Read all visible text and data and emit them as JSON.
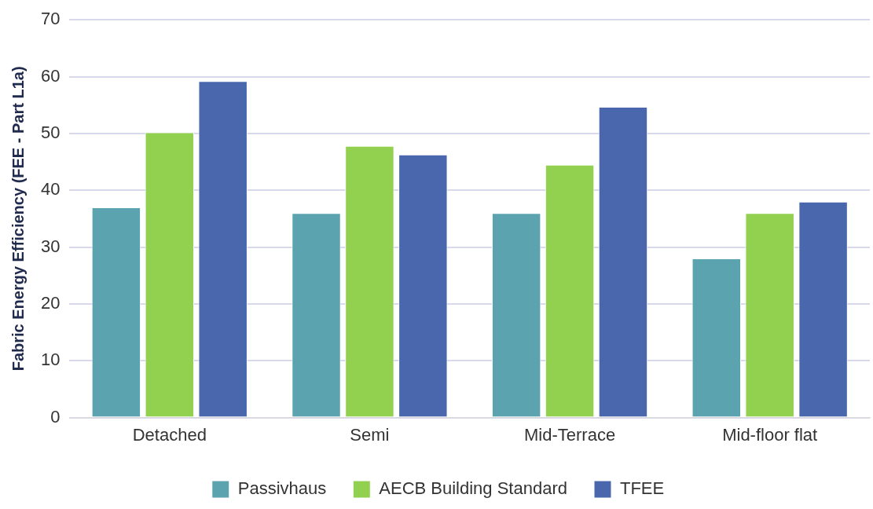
{
  "chart_data": {
    "type": "bar",
    "ylabel": "Fabric Energy Efficiency (FEE - Part L1a)",
    "categories": [
      "Detached",
      "Semi",
      "Mid-Terrace",
      "Mid-floor flat"
    ],
    "series": [
      {
        "name": "Passivhaus",
        "color": "#5ba3ae",
        "values": [
          37,
          36,
          36,
          28
        ]
      },
      {
        "name": "AECB Building Standard",
        "color": "#92d050",
        "values": [
          50.2,
          47.8,
          44.5,
          36
        ]
      },
      {
        "name": "TFEE",
        "color": "#4a67ae",
        "values": [
          59.2,
          46.3,
          54.7,
          38
        ]
      }
    ],
    "ylim": [
      0,
      70
    ],
    "yticks": [
      0,
      10,
      20,
      30,
      40,
      50,
      60,
      70
    ],
    "grid": "y",
    "legend": "bottom"
  }
}
